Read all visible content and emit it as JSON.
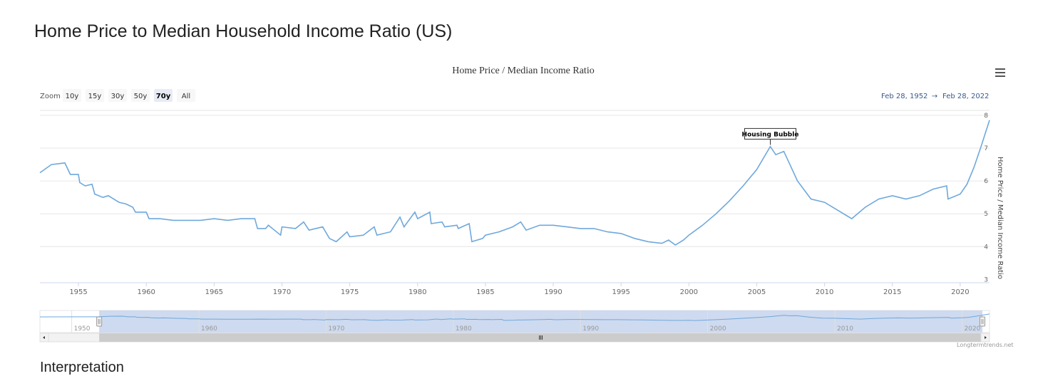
{
  "page": {
    "title": "Home Price to Median Household Income Ratio (US)",
    "section_heading": "Interpretation",
    "credits": "Longtermtrends.net"
  },
  "controls": {
    "zoom_label": "Zoom",
    "zoom_buttons": [
      "10y",
      "15y",
      "30y",
      "50y",
      "70y",
      "All"
    ],
    "zoom_selected": "70y",
    "range_from": "Feb 28, 1952",
    "range_arrow": "→",
    "range_to": "Feb 28, 2022",
    "menu_icon": "hamburger-menu-icon"
  },
  "colors": {
    "series": "#6fa8dc",
    "navigator_fill": "#c6d3ec",
    "range_text": "#3a5a8c"
  },
  "chart_data": {
    "type": "line",
    "title": "Home Price / Median Income Ratio",
    "ylabel": "Home Price / Median Income Ratio",
    "xlabel": "",
    "x_range": [
      1952.16,
      2022.16
    ],
    "ylim": [
      3,
      8
    ],
    "y_ticks": [
      "3",
      "4",
      "5",
      "6",
      "7",
      "8"
    ],
    "x_ticks": [
      "1955",
      "1960",
      "1965",
      "1970",
      "1975",
      "1980",
      "1985",
      "1990",
      "1995",
      "2000",
      "2005",
      "2010",
      "2015",
      "2020"
    ],
    "navigator_ticks": [
      "1950",
      "1960",
      "1970",
      "1980",
      "1990",
      "2000",
      "2010",
      "2020"
    ],
    "annotation": {
      "text": "Housing Bubble",
      "x": 2006.0,
      "y": 7.1
    },
    "series": [
      {
        "x": [
          1952.16,
          1953,
          1954,
          1954.4,
          1955,
          1955.1,
          1955.5,
          1956,
          1956.2,
          1956.8,
          1957.2,
          1957.8,
          1958,
          1958.5,
          1959,
          1959.2,
          1960,
          1960.2,
          1961,
          1962,
          1963,
          1964,
          1965,
          1966,
          1967,
          1968,
          1968.2,
          1968.8,
          1969,
          1969.9,
          1970,
          1971,
          1971.6,
          1972,
          1973,
          1973.5,
          1974,
          1974.8,
          1975,
          1976,
          1976.8,
          1977,
          1978,
          1978.7,
          1979,
          1979.8,
          1980,
          1980.9,
          1981,
          1981.8,
          1982,
          1982.9,
          1983,
          1983.8,
          1984,
          1984.8,
          1985,
          1986,
          1987,
          1987.6,
          1988,
          1989,
          1990,
          1991,
          1992,
          1993,
          1994,
          1995,
          1996,
          1997,
          1998,
          1998.5,
          1999,
          1999.6,
          2000,
          2001,
          2002,
          2003,
          2004,
          2005,
          2006,
          2006.4,
          2007,
          2008,
          2009,
          2010,
          2011,
          2012,
          2013,
          2014,
          2015,
          2016,
          2017,
          2018,
          2019,
          2019.1,
          2020,
          2020.5,
          2021,
          2021.5,
          2022.16
        ],
        "y": [
          6.25,
          6.5,
          6.55,
          6.2,
          6.2,
          5.95,
          5.85,
          5.9,
          5.6,
          5.5,
          5.55,
          5.4,
          5.35,
          5.3,
          5.2,
          5.05,
          5.05,
          4.85,
          4.85,
          4.8,
          4.8,
          4.8,
          4.85,
          4.8,
          4.85,
          4.85,
          4.55,
          4.55,
          4.65,
          4.35,
          4.6,
          4.55,
          4.75,
          4.5,
          4.6,
          4.25,
          4.15,
          4.45,
          4.3,
          4.35,
          4.6,
          4.35,
          4.45,
          4.9,
          4.6,
          5.05,
          4.85,
          5.05,
          4.7,
          4.75,
          4.6,
          4.65,
          4.55,
          4.7,
          4.15,
          4.25,
          4.35,
          4.45,
          4.6,
          4.75,
          4.5,
          4.65,
          4.65,
          4.6,
          4.55,
          4.55,
          4.45,
          4.4,
          4.25,
          4.15,
          4.1,
          4.2,
          4.05,
          4.2,
          4.35,
          4.65,
          5.0,
          5.4,
          5.85,
          6.35,
          7.05,
          6.8,
          6.9,
          6.0,
          5.45,
          5.35,
          5.1,
          4.85,
          5.2,
          5.45,
          5.55,
          5.45,
          5.55,
          5.75,
          5.85,
          5.45,
          5.6,
          5.9,
          6.4,
          7.0,
          7.85
        ]
      }
    ]
  }
}
